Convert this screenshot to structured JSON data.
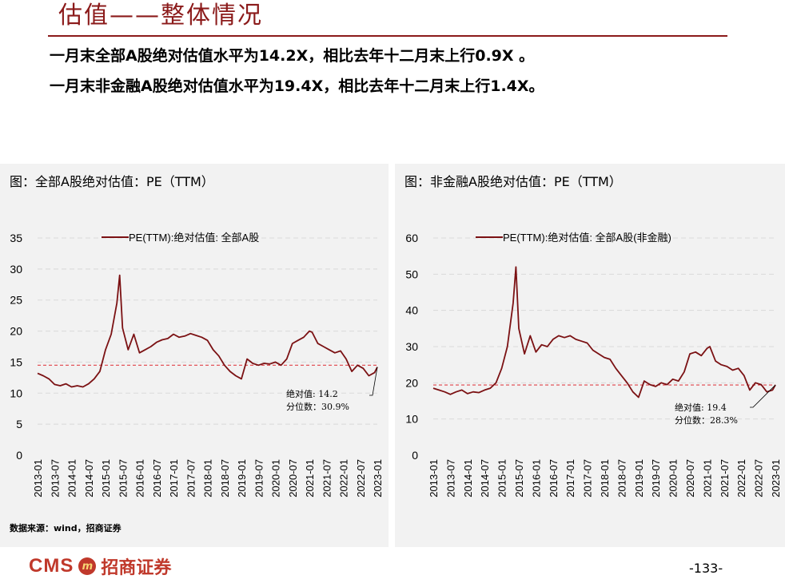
{
  "header": {
    "title": "估值——整体情况",
    "bullet1": "一月末全部A股绝对估值水平为14.2X，相比去年十二月末上行0.9X 。",
    "bullet2": "一月末非金融A股绝对估值水平为19.4X，相比去年十二月末上行1.4X。"
  },
  "footer": {
    "source": "数据来源：wind，招商证券",
    "logo_latin": "CMS",
    "logo_mark": "m",
    "logo_cn": "招商证券",
    "page": "-133-"
  },
  "colors": {
    "series": "#7b1113",
    "reference": "#e0424a",
    "accent": "#8b1a1a"
  },
  "chart_data": [
    {
      "type": "line",
      "title": "图：全部A股绝对估值：PE（TTM）",
      "legend": "PE(TTM):绝对估值: 全部A股",
      "legend_position": "top",
      "ylim": [
        0,
        35
      ],
      "yticks": [
        0,
        5,
        10,
        15,
        20,
        25,
        30,
        35
      ],
      "xticks": [
        "2013-01",
        "2013-07",
        "2014-01",
        "2014-07",
        "2015-01",
        "2015-07",
        "2016-01",
        "2016-07",
        "2017-01",
        "2017-07",
        "2018-01",
        "2018-07",
        "2019-01",
        "2019-07",
        "2020-01",
        "2020-07",
        "2021-01",
        "2021-07",
        "2022-01",
        "2022-07",
        "2023-01"
      ],
      "grid": "horizontal-dashed",
      "reference_line": 14.5,
      "annotation": {
        "line1": "绝对值:  14.2",
        "line2": "分位数：30.9%"
      },
      "series": [
        {
          "name": "PE(TTM):绝对估值: 全部A股",
          "x": [
            "2013-01",
            "2013-03",
            "2013-05",
            "2013-07",
            "2013-09",
            "2013-11",
            "2014-01",
            "2014-03",
            "2014-05",
            "2014-07",
            "2014-09",
            "2014-11",
            "2015-01",
            "2015-03",
            "2015-05",
            "2015-06",
            "2015-07",
            "2015-09",
            "2015-11",
            "2016-01",
            "2016-03",
            "2016-05",
            "2016-07",
            "2016-09",
            "2016-11",
            "2017-01",
            "2017-03",
            "2017-05",
            "2017-07",
            "2017-09",
            "2017-11",
            "2018-01",
            "2018-03",
            "2018-05",
            "2018-07",
            "2018-09",
            "2018-11",
            "2019-01",
            "2019-03",
            "2019-05",
            "2019-07",
            "2019-09",
            "2019-11",
            "2020-01",
            "2020-03",
            "2020-05",
            "2020-07",
            "2020-09",
            "2020-11",
            "2021-01",
            "2021-02",
            "2021-04",
            "2021-06",
            "2021-08",
            "2021-10",
            "2021-12",
            "2022-02",
            "2022-04",
            "2022-06",
            "2022-08",
            "2022-10",
            "2022-12",
            "2023-01"
          ],
          "values": [
            13.2,
            12.8,
            12.3,
            11.4,
            11.2,
            11.5,
            11.0,
            11.2,
            11.0,
            11.5,
            12.3,
            13.5,
            17.0,
            19.5,
            24.5,
            29.0,
            20.5,
            17.0,
            19.5,
            16.5,
            17.0,
            17.5,
            18.2,
            18.6,
            18.8,
            19.5,
            19.0,
            19.2,
            19.6,
            19.3,
            19.0,
            18.5,
            17.0,
            16.0,
            14.5,
            13.5,
            12.8,
            12.3,
            15.5,
            14.8,
            14.5,
            14.8,
            14.7,
            15.0,
            14.5,
            15.5,
            18.0,
            18.5,
            19.0,
            20.0,
            19.8,
            18.0,
            17.5,
            17.0,
            16.5,
            16.8,
            15.5,
            13.5,
            14.5,
            14.0,
            12.8,
            13.3,
            14.2
          ]
        }
      ]
    },
    {
      "type": "line",
      "title": "图：非金融A股绝对估值：PE（TTM）",
      "legend": "PE(TTM):绝对估值: 全部A股(非金融)",
      "legend_position": "top",
      "ylim": [
        0,
        60
      ],
      "yticks": [
        0,
        10,
        20,
        30,
        40,
        50,
        60
      ],
      "xticks": [
        "2013-01",
        "2013-07",
        "2014-01",
        "2014-07",
        "2015-01",
        "2015-07",
        "2016-01",
        "2016-07",
        "2017-01",
        "2017-07",
        "2018-01",
        "2018-07",
        "2019-01",
        "2019-07",
        "2020-01",
        "2020-07",
        "2021-01",
        "2021-07",
        "2022-01",
        "2022-07",
        "2023-01"
      ],
      "grid": "horizontal-dashed",
      "reference_line": 19.4,
      "annotation": {
        "line1": "绝对值:  19.4",
        "line2": "分位数：28.3%"
      },
      "series": [
        {
          "name": "PE(TTM):绝对估值: 全部A股(非金融)",
          "x": [
            "2013-01",
            "2013-03",
            "2013-05",
            "2013-07",
            "2013-09",
            "2013-11",
            "2014-01",
            "2014-03",
            "2014-05",
            "2014-07",
            "2014-09",
            "2014-11",
            "2015-01",
            "2015-03",
            "2015-05",
            "2015-06",
            "2015-07",
            "2015-09",
            "2015-11",
            "2016-01",
            "2016-03",
            "2016-05",
            "2016-07",
            "2016-09",
            "2016-11",
            "2017-01",
            "2017-03",
            "2017-05",
            "2017-07",
            "2017-09",
            "2017-11",
            "2018-01",
            "2018-03",
            "2018-05",
            "2018-07",
            "2018-09",
            "2018-11",
            "2019-01",
            "2019-03",
            "2019-05",
            "2019-07",
            "2019-09",
            "2019-11",
            "2020-01",
            "2020-03",
            "2020-05",
            "2020-07",
            "2020-09",
            "2020-11",
            "2021-01",
            "2021-02",
            "2021-04",
            "2021-06",
            "2021-08",
            "2021-10",
            "2021-12",
            "2022-02",
            "2022-04",
            "2022-06",
            "2022-08",
            "2022-10",
            "2022-12",
            "2023-01"
          ],
          "values": [
            18.5,
            18.0,
            17.5,
            16.8,
            17.5,
            18.0,
            17.0,
            17.5,
            17.3,
            18.0,
            18.5,
            20.0,
            24.0,
            30.0,
            42.0,
            52.0,
            35.0,
            28.0,
            33.0,
            28.5,
            30.5,
            30.0,
            32.0,
            33.0,
            32.5,
            33.0,
            32.0,
            31.5,
            31.0,
            29.0,
            28.0,
            27.0,
            26.5,
            24.0,
            22.0,
            20.0,
            17.5,
            16.0,
            20.5,
            19.5,
            19.0,
            20.0,
            19.5,
            21.0,
            20.5,
            23.0,
            28.0,
            28.5,
            27.5,
            29.5,
            30.0,
            26.0,
            25.0,
            24.5,
            23.5,
            24.0,
            22.0,
            18.0,
            20.0,
            19.5,
            17.5,
            18.0,
            19.4
          ]
        }
      ]
    }
  ]
}
